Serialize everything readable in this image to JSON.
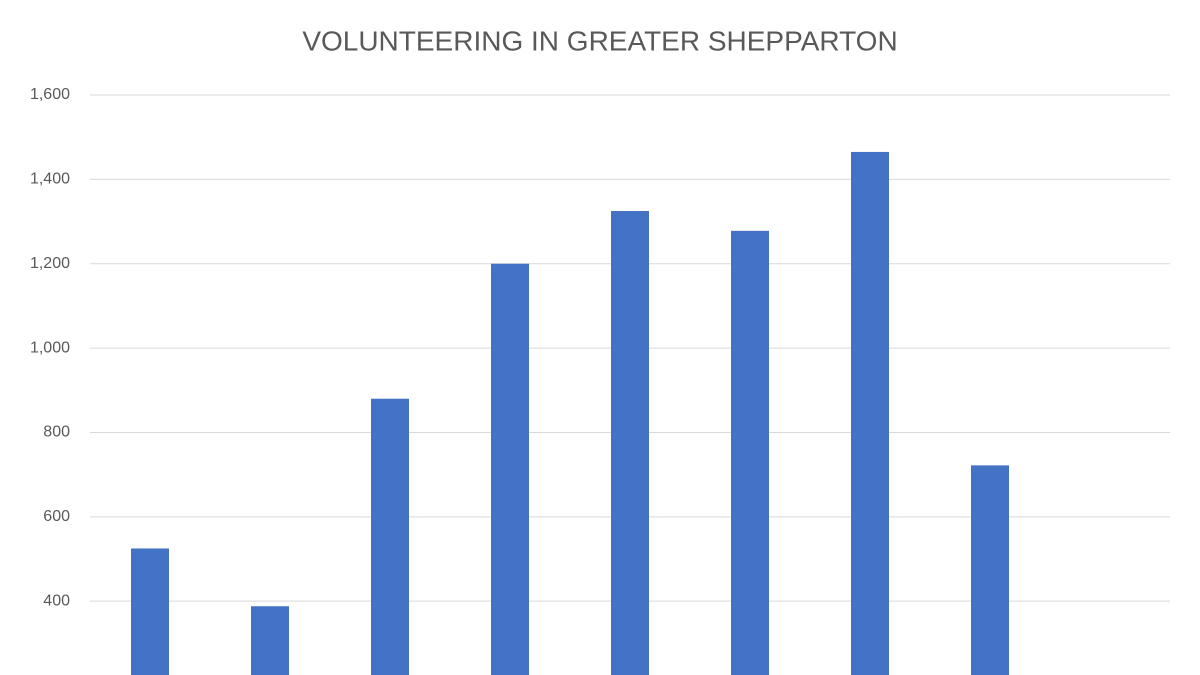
{
  "chart_data": {
    "type": "bar",
    "title": "VOLUNTEERING IN GREATER SHEPPARTON",
    "categories": [
      null,
      null,
      null,
      null,
      null,
      null,
      null,
      null,
      null
    ],
    "values": [
      525,
      388,
      880,
      1200,
      1325,
      1278,
      1465,
      722,
      null
    ],
    "color": "#4472c4",
    "ylim": [
      225,
      1600
    ],
    "yticks": [
      400,
      600,
      800,
      {
        "value": 1000,
        "label": "1,000"
      },
      {
        "value": 1200,
        "label": "1,200"
      },
      {
        "value": 1400,
        "label": "1,400"
      },
      {
        "value": 1600,
        "label": "1,600"
      }
    ],
    "grid": true
  }
}
